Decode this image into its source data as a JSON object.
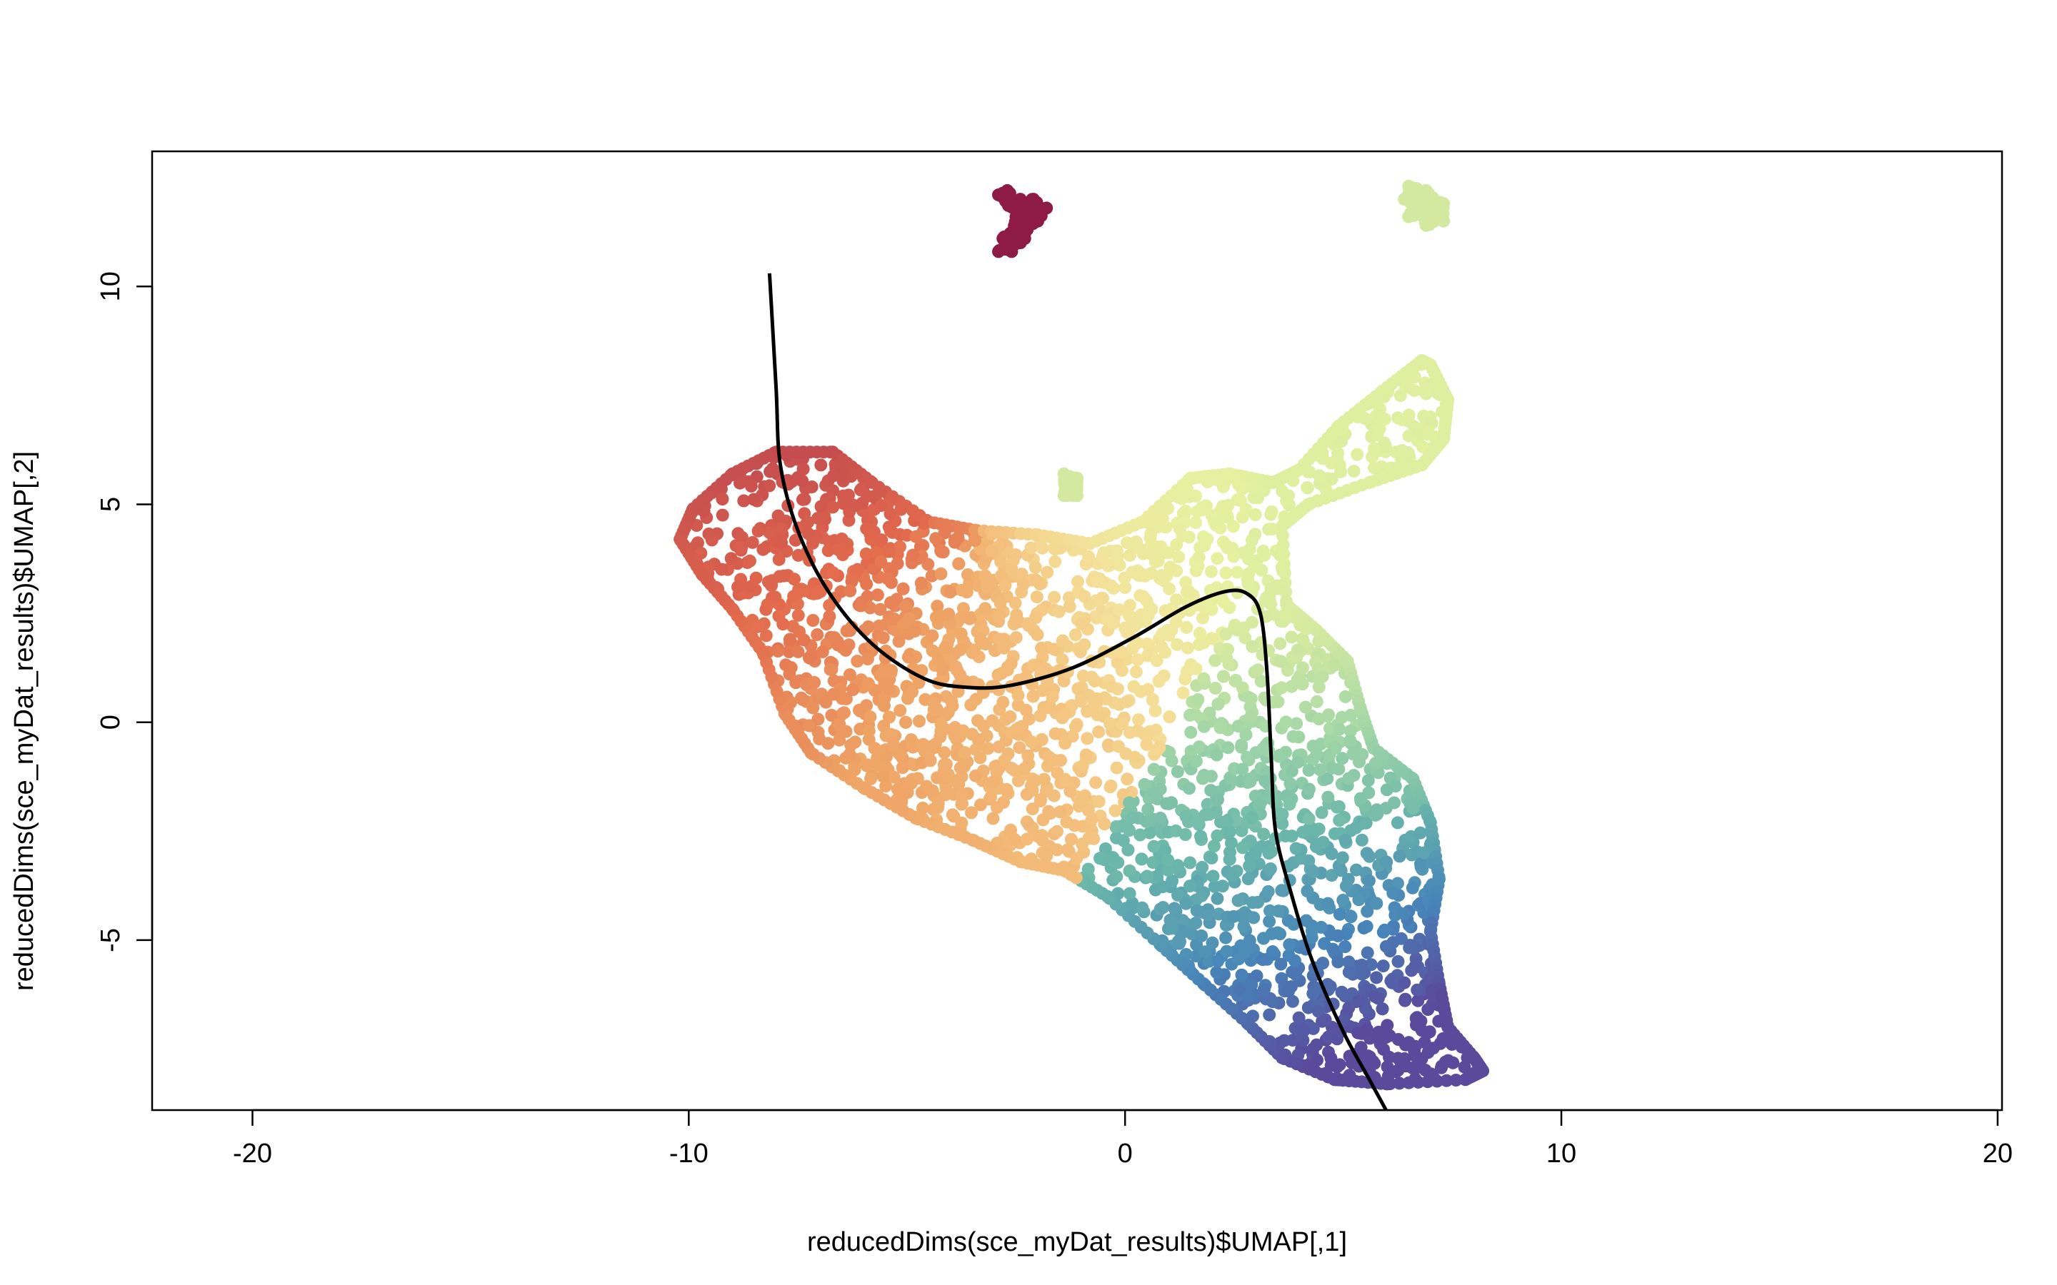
{
  "chart_data": {
    "type": "scatter",
    "title": "",
    "xlabel": "reducedDims(sce_myDat_results)$UMAP[,1]",
    "ylabel": "reducedDims(sce_myDat_results)$UMAP[,2]",
    "xlim": [
      -22.3,
      20.1
    ],
    "ylim": [
      -8.9,
      13.1
    ],
    "x_ticks": [
      -20,
      -10,
      0,
      10,
      20
    ],
    "y_ticks": [
      -5,
      0,
      5,
      10
    ],
    "grid": false,
    "legend": "none",
    "point_color_scale": "Spectral",
    "colors": {
      "dark_red": "#8e1b44",
      "red": "#d05450",
      "orange": "#e8784e",
      "light_orange": "#f0a668",
      "peach": "#f6c882",
      "yellow": "#f3e79b",
      "light_yellow_green": "#e6f1a0",
      "pale_green": "#d4e9a0",
      "mint": "#a6d8a6",
      "teal": "#6ab6ab",
      "blue": "#4785b9",
      "purple": "#5a4a9c"
    },
    "clusters": [
      {
        "name": "top-island",
        "color": "#8e1b44",
        "polygon": [
          [
            -2.7,
            12.2
          ],
          [
            -2.4,
            12.0
          ],
          [
            -2.1,
            12.0
          ],
          [
            -1.8,
            11.8
          ],
          [
            -2.0,
            11.5
          ],
          [
            -2.3,
            11.1
          ],
          [
            -2.6,
            10.8
          ],
          [
            -2.9,
            10.8
          ],
          [
            -2.8,
            11.1
          ],
          [
            -2.5,
            11.6
          ],
          [
            -2.9,
            12.1
          ]
        ]
      },
      {
        "name": "top-right-island",
        "color": "#d4e9a0",
        "polygon": [
          [
            6.5,
            12.3
          ],
          [
            6.9,
            12.2
          ],
          [
            7.3,
            11.9
          ],
          [
            7.3,
            11.5
          ],
          [
            6.9,
            11.4
          ],
          [
            6.5,
            11.6
          ],
          [
            6.4,
            12.0
          ]
        ]
      },
      {
        "name": "speck",
        "color": "#d4e9a0",
        "polygon": [
          [
            -1.4,
            5.7
          ],
          [
            -1.1,
            5.6
          ],
          [
            -1.1,
            5.2
          ],
          [
            -1.4,
            5.2
          ]
        ]
      }
    ],
    "main_points": {
      "n": 2600,
      "color_stops": [
        [
          0.0,
          "#c44c4f"
        ],
        [
          0.12,
          "#e2694c"
        ],
        [
          0.24,
          "#eea264"
        ],
        [
          0.36,
          "#f4c07d"
        ],
        [
          0.46,
          "#f4e29a"
        ],
        [
          0.55,
          "#e6f1a0"
        ],
        [
          0.62,
          "#d4e9a0"
        ],
        [
          0.7,
          "#a6d8a6"
        ],
        [
          0.8,
          "#6ab6ab"
        ],
        [
          0.9,
          "#4785b9"
        ],
        [
          1.0,
          "#5a4a9c"
        ]
      ]
    },
    "main_region": [
      [
        -10.2,
        4.2
      ],
      [
        -9.9,
        4.9
      ],
      [
        -9.0,
        5.7
      ],
      [
        -8.0,
        6.2
      ],
      [
        -6.7,
        6.2
      ],
      [
        -5.8,
        5.5
      ],
      [
        -4.5,
        4.6
      ],
      [
        -3.4,
        4.4
      ],
      [
        -2.0,
        4.3
      ],
      [
        -0.8,
        4.1
      ],
      [
        0.4,
        4.6
      ],
      [
        1.5,
        5.6
      ],
      [
        2.4,
        5.7
      ],
      [
        3.4,
        5.5
      ],
      [
        4.0,
        5.8
      ],
      [
        4.9,
        6.8
      ],
      [
        5.9,
        7.6
      ],
      [
        6.8,
        8.3
      ],
      [
        7.0,
        8.2
      ],
      [
        7.4,
        7.4
      ],
      [
        7.3,
        6.5
      ],
      [
        6.8,
        5.9
      ],
      [
        5.6,
        5.5
      ],
      [
        4.2,
        5.0
      ],
      [
        3.6,
        4.5
      ],
      [
        3.7,
        2.7
      ],
      [
        4.4,
        2.1
      ],
      [
        5.1,
        1.4
      ],
      [
        5.4,
        0.3
      ],
      [
        5.7,
        -0.6
      ],
      [
        6.6,
        -1.3
      ],
      [
        7.0,
        -2.3
      ],
      [
        7.2,
        -3.6
      ],
      [
        7.0,
        -4.8
      ],
      [
        7.2,
        -6.0
      ],
      [
        7.4,
        -7.0
      ],
      [
        8.0,
        -7.7
      ],
      [
        8.2,
        -8.0
      ],
      [
        7.8,
        -8.2
      ],
      [
        6.0,
        -8.3
      ],
      [
        4.8,
        -8.2
      ],
      [
        3.6,
        -7.7
      ],
      [
        2.8,
        -6.9
      ],
      [
        1.8,
        -6.0
      ],
      [
        0.8,
        -5.1
      ],
      [
        -0.4,
        -4.0
      ],
      [
        -1.4,
        -3.4
      ],
      [
        -2.4,
        -3.2
      ],
      [
        -3.5,
        -2.7
      ],
      [
        -4.8,
        -2.2
      ],
      [
        -6.0,
        -1.5
      ],
      [
        -7.2,
        -0.7
      ],
      [
        -7.8,
        0.2
      ],
      [
        -8.3,
        1.6
      ],
      [
        -9.0,
        2.6
      ],
      [
        -9.7,
        3.4
      ]
    ],
    "principal_curve": [
      [
        -8.15,
        10.3
      ],
      [
        -8.0,
        7.7
      ],
      [
        -7.9,
        5.9
      ],
      [
        -7.5,
        4.4
      ],
      [
        -6.8,
        3.0
      ],
      [
        -5.8,
        1.8
      ],
      [
        -4.6,
        1.0
      ],
      [
        -3.6,
        0.8
      ],
      [
        -2.6,
        0.85
      ],
      [
        -1.2,
        1.25
      ],
      [
        0.2,
        1.95
      ],
      [
        1.4,
        2.65
      ],
      [
        2.3,
        3.0
      ],
      [
        2.8,
        2.95
      ],
      [
        3.1,
        2.5
      ],
      [
        3.25,
        1.2
      ],
      [
        3.35,
        -0.8
      ],
      [
        3.45,
        -2.5
      ],
      [
        3.8,
        -3.9
      ],
      [
        4.3,
        -5.5
      ],
      [
        5.0,
        -7.1
      ],
      [
        5.6,
        -8.2
      ],
      [
        6.2,
        -9.3
      ]
    ]
  }
}
